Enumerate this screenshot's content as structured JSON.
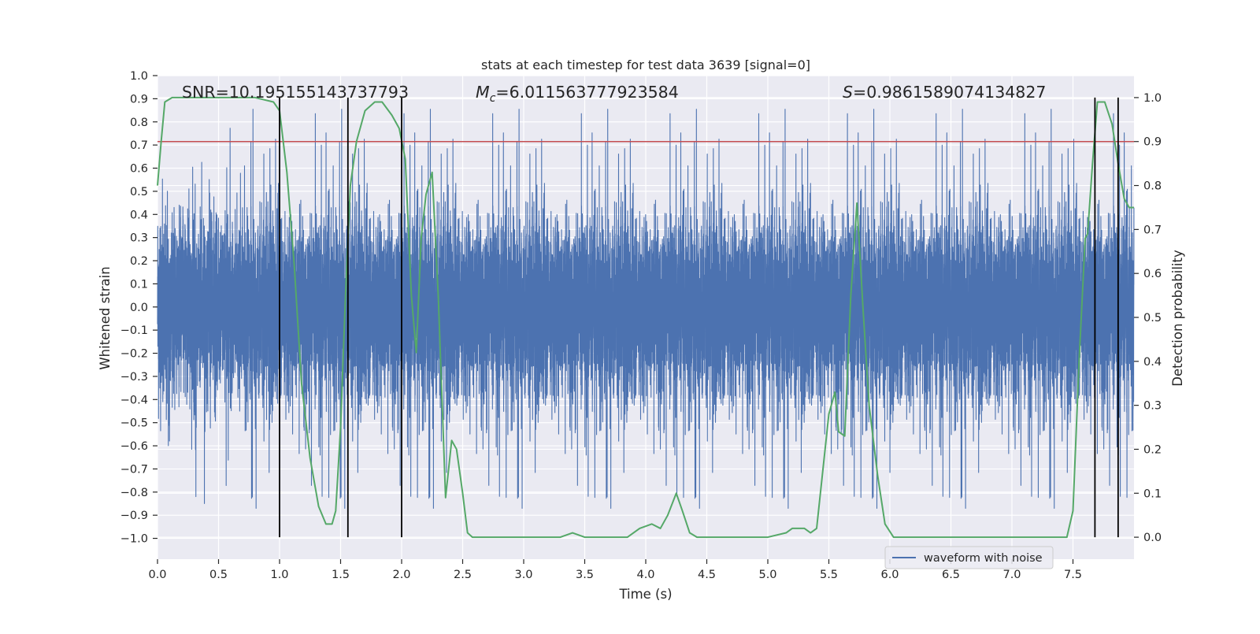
{
  "chart_data": {
    "type": "line",
    "title": "stats at each timestep for test data 3639 [signal=0]",
    "xlabel": "Time (s)",
    "ylabel": "Whitened strain",
    "y2label": "Detection probability",
    "xlim": [
      0.0,
      8.0
    ],
    "ylim": [
      -1.09,
      1.0
    ],
    "y2lim": [
      -0.05,
      1.05
    ],
    "x_ticks": [
      0.0,
      0.5,
      1.0,
      1.5,
      2.0,
      2.5,
      3.0,
      3.5,
      4.0,
      4.5,
      5.0,
      5.5,
      6.0,
      6.5,
      7.0,
      7.5
    ],
    "x_tick_labels": [
      "0.0",
      "0.5",
      "1.0",
      "1.5",
      "2.0",
      "2.5",
      "3.0",
      "3.5",
      "4.0",
      "4.5",
      "5.0",
      "5.5",
      "6.0",
      "6.5",
      "7.0",
      "7.5"
    ],
    "y_ticks": [
      1.0,
      0.9,
      0.8,
      0.7,
      0.6,
      0.5,
      0.4,
      0.3,
      0.2,
      0.1,
      0.0,
      -0.1,
      -0.2,
      -0.3,
      -0.4,
      -0.5,
      -0.6,
      -0.7,
      -0.8,
      -0.9,
      -1.0
    ],
    "y_tick_labels": [
      "1.0",
      "0.9",
      "0.8",
      "0.7",
      "0.6",
      "0.5",
      "0.4",
      "0.3",
      "0.2",
      "0.1",
      "0.0",
      "−0.1",
      "−0.2",
      "−0.3",
      "−0.4",
      "−0.5",
      "−0.6",
      "−0.7",
      "−0.8",
      "−0.9",
      "−1.0"
    ],
    "y2_ticks": [
      1.0,
      0.9,
      0.8,
      0.7,
      0.6,
      0.5,
      0.4,
      0.3,
      0.2,
      0.1,
      0.0
    ],
    "y2_tick_labels": [
      "1.0",
      "0.9",
      "0.8",
      "0.7",
      "0.6",
      "0.5",
      "0.4",
      "0.3",
      "0.2",
      "0.1",
      "0.0"
    ],
    "grid": true,
    "legend": {
      "location": "lower-right",
      "entries": [
        "waveform with noise"
      ]
    },
    "annotations": {
      "snr": "SNR=10.195155143737793",
      "mc_symbol": "M",
      "mc_sub": "c",
      "mc_value": "=6.011563777923584",
      "s_symbol": "S",
      "s_value": "=0.9861589074134827"
    },
    "threshold": {
      "axis": "y2",
      "value": 0.9
    },
    "vertical_markers": [
      1.0,
      1.56,
      2.0,
      7.68,
      7.87
    ],
    "series": [
      {
        "name": "waveform with noise",
        "axis": "y",
        "kind": "noise",
        "sample_rate_hz": 2048,
        "core_amplitude": 0.4,
        "peak_max": 0.9,
        "trough_min": -1.0
      },
      {
        "axis": "y2",
        "x": [
          0.0,
          0.03,
          0.06,
          0.12,
          0.25,
          0.4,
          0.6,
          0.8,
          0.95,
          1.0,
          1.06,
          1.12,
          1.18,
          1.25,
          1.32,
          1.38,
          1.43,
          1.46,
          1.5,
          1.54,
          1.58,
          1.63,
          1.7,
          1.78,
          1.84,
          1.92,
          1.98,
          2.03,
          2.08,
          2.12,
          2.16,
          2.2,
          2.25,
          2.3,
          2.36,
          2.41,
          2.45,
          2.5,
          2.54,
          2.58,
          2.65,
          2.8,
          3.0,
          3.2,
          3.3,
          3.4,
          3.5,
          3.7,
          3.85,
          3.95,
          4.05,
          4.12,
          4.18,
          4.25,
          4.3,
          4.36,
          4.42,
          4.55,
          4.7,
          4.85,
          5.0,
          5.15,
          5.2,
          5.25,
          5.3,
          5.35,
          5.4,
          5.45,
          5.5,
          5.55,
          5.58,
          5.63,
          5.68,
          5.73,
          5.78,
          5.83,
          5.9,
          5.96,
          6.03,
          6.1,
          6.2,
          6.4,
          6.7,
          7.0,
          7.2,
          7.3,
          7.4,
          7.45,
          7.5,
          7.55,
          7.6,
          7.62,
          7.66,
          7.7,
          7.76,
          7.82,
          7.87,
          7.92,
          7.96,
          8.0
        ],
        "y": [
          0.8,
          0.9,
          0.99,
          1.0,
          1.0,
          1.0,
          1.0,
          1.0,
          0.99,
          0.97,
          0.83,
          0.62,
          0.35,
          0.18,
          0.07,
          0.03,
          0.03,
          0.06,
          0.25,
          0.55,
          0.8,
          0.9,
          0.97,
          0.99,
          0.99,
          0.96,
          0.93,
          0.86,
          0.55,
          0.42,
          0.68,
          0.78,
          0.83,
          0.55,
          0.09,
          0.22,
          0.2,
          0.1,
          0.01,
          0.0,
          0.0,
          0.0,
          0.0,
          0.0,
          0.0,
          0.01,
          0.0,
          0.0,
          0.0,
          0.02,
          0.03,
          0.02,
          0.05,
          0.1,
          0.06,
          0.01,
          0.0,
          0.0,
          0.0,
          0.0,
          0.0,
          0.01,
          0.02,
          0.02,
          0.02,
          0.01,
          0.02,
          0.15,
          0.28,
          0.33,
          0.24,
          0.23,
          0.55,
          0.76,
          0.52,
          0.3,
          0.14,
          0.03,
          0.0,
          0.0,
          0.0,
          0.0,
          0.0,
          0.0,
          0.0,
          0.0,
          0.0,
          0.0,
          0.06,
          0.4,
          0.68,
          0.69,
          0.85,
          0.99,
          0.99,
          0.94,
          0.85,
          0.77,
          0.75,
          0.75
        ]
      }
    ],
    "colors": {
      "background": "#eaeaf2",
      "grid": "#ffffff",
      "waveform": "#4c72b0",
      "probability": "#55a868",
      "threshold": "#c44e52",
      "markers": "#000000",
      "text": "#262626"
    }
  }
}
